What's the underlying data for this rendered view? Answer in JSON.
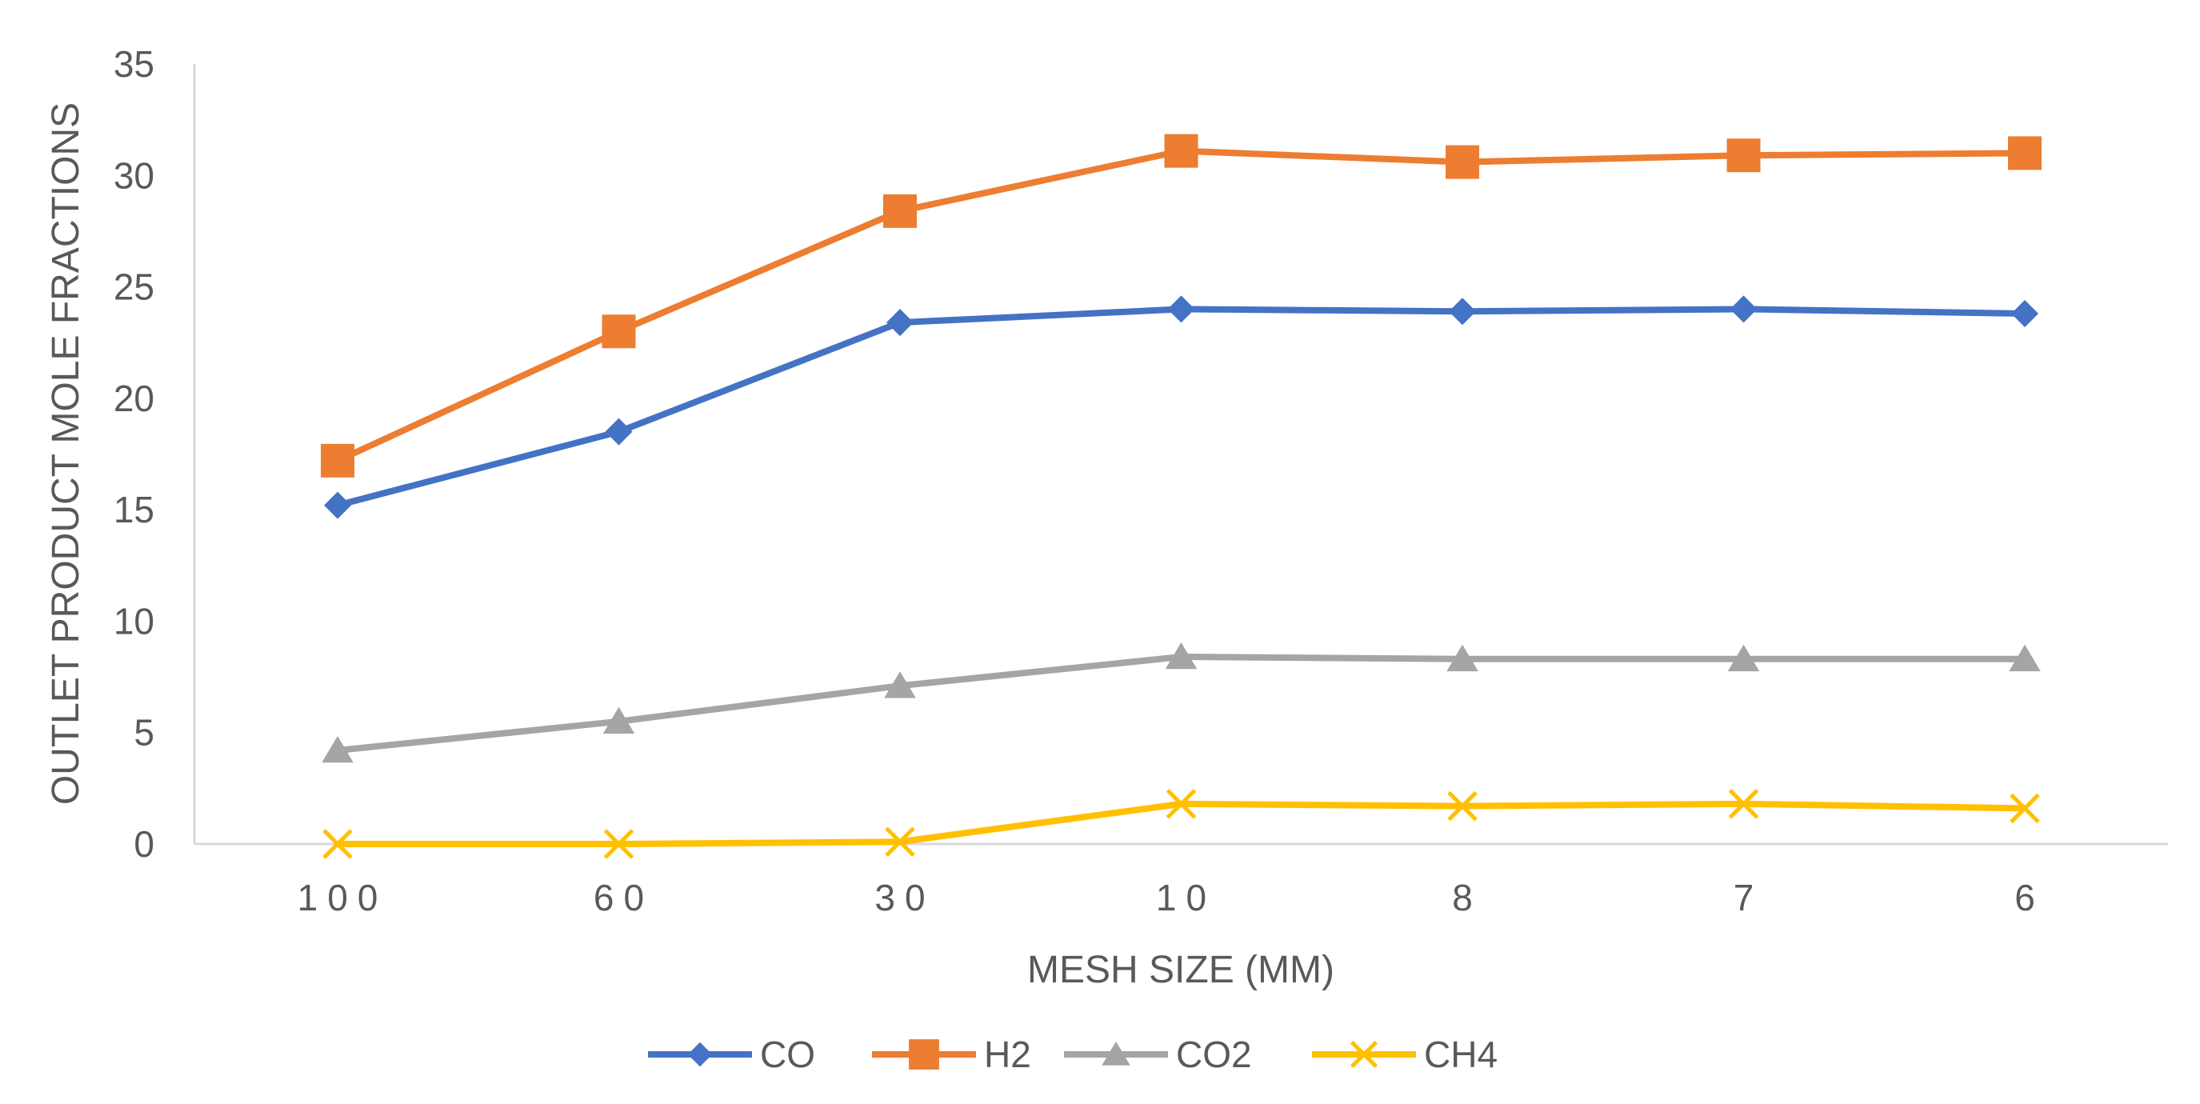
{
  "chart_data": {
    "type": "line",
    "title": "",
    "xlabel": "MESH SIZE (MM)",
    "ylabel": "OUTLET PRODUCT MOLE FRACTIONS",
    "categories": [
      "100",
      "60",
      "30",
      "10",
      "8",
      "7",
      "6"
    ],
    "ylim": [
      0,
      35
    ],
    "yticks": [
      0,
      5,
      10,
      15,
      20,
      25,
      30,
      35
    ],
    "grid": false,
    "legend_position": "bottom",
    "series": [
      {
        "name": "CO",
        "color": "#4472C4",
        "marker": "diamond",
        "values": [
          15.2,
          18.5,
          23.4,
          24.0,
          23.9,
          24.0,
          23.8
        ]
      },
      {
        "name": "H2",
        "color": "#ED7D31",
        "marker": "square",
        "values": [
          17.2,
          23.0,
          28.4,
          31.1,
          30.6,
          30.9,
          31.0
        ]
      },
      {
        "name": "CO2",
        "color": "#A5A5A5",
        "marker": "triangle",
        "values": [
          4.2,
          5.5,
          7.1,
          8.4,
          8.3,
          8.3,
          8.3
        ]
      },
      {
        "name": "CH4",
        "color": "#FFC000",
        "marker": "x",
        "values": [
          0.0,
          0.0,
          0.1,
          1.8,
          1.7,
          1.8,
          1.6
        ]
      }
    ]
  }
}
